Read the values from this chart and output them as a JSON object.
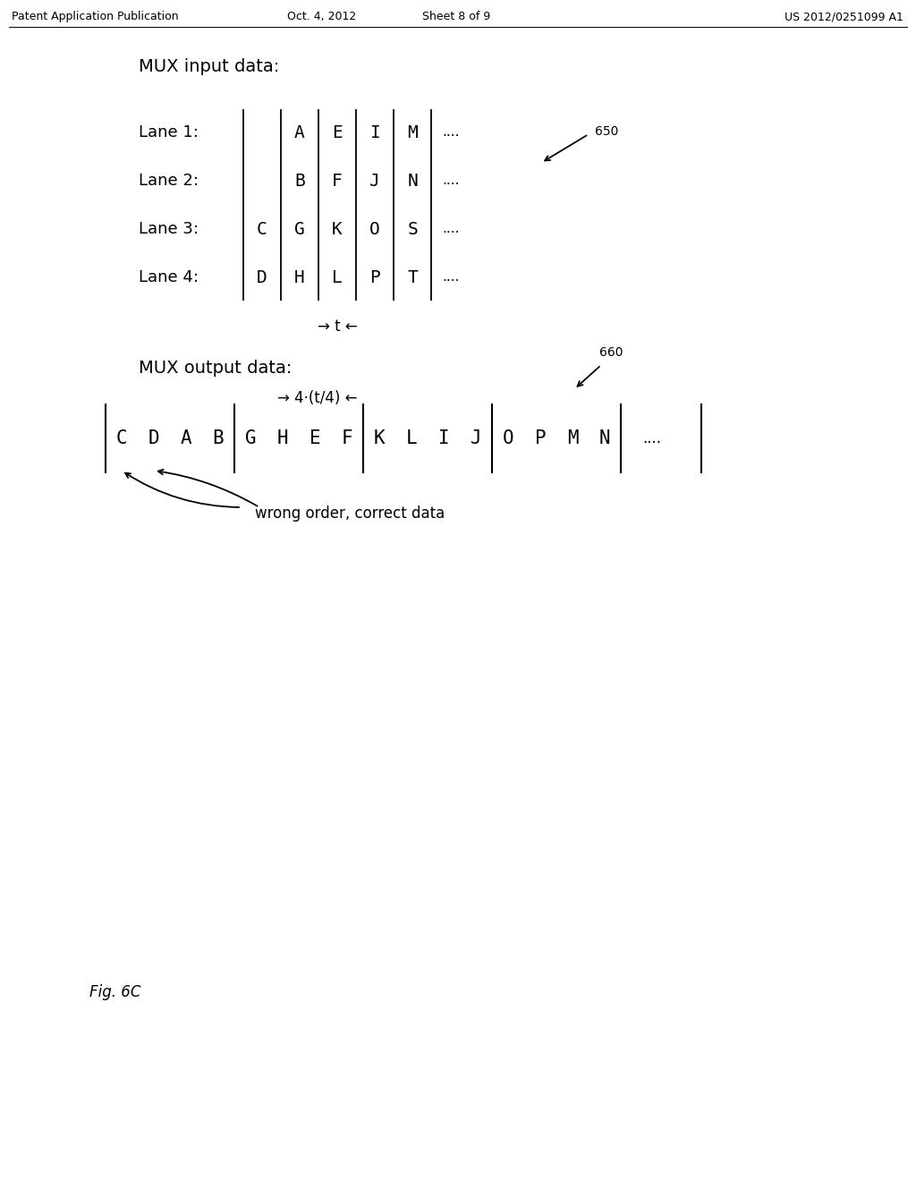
{
  "page_bg": "#ffffff",
  "header_text": "Patent Application Publication",
  "header_date": "Oct. 4, 2012",
  "header_sheet": "Sheet 8 of 9",
  "header_patent": "US 2012/0251099 A1",
  "header_fontsize": 9,
  "mux_input_label": "MUX input data:",
  "lanes": [
    "Lane 1:",
    "Lane 2:",
    "Lane 3:",
    "Lane 4:"
  ],
  "lane1_cells": [
    "",
    "",
    "A",
    "E",
    "I",
    "M"
  ],
  "lane2_cells": [
    "",
    "",
    "B",
    "F",
    "J",
    "N"
  ],
  "lane3_cells": [
    "",
    "C",
    "G",
    "K",
    "O",
    "S"
  ],
  "lane4_cells": [
    "",
    "D",
    "H",
    "L",
    "P",
    "T"
  ],
  "lane_dots": "....",
  "t_label": "→ t ←",
  "ref650": "650",
  "ref660": "660",
  "mux_output_label": "MUX output data:",
  "time_label": "→ 4·(t/4) ←",
  "output_cells": [
    "C",
    "D",
    "A",
    "B",
    "G",
    "H",
    "E",
    "F",
    "K",
    "L",
    "I",
    "J",
    "O",
    "P",
    "M",
    "N"
  ],
  "output_dots": "....",
  "wrong_order_label": "wrong order, correct data",
  "fig_label": "Fig. 6C",
  "font_size_label": 13,
  "font_size_cell": 14,
  "font_size_ref": 10,
  "font_size_fig": 12
}
